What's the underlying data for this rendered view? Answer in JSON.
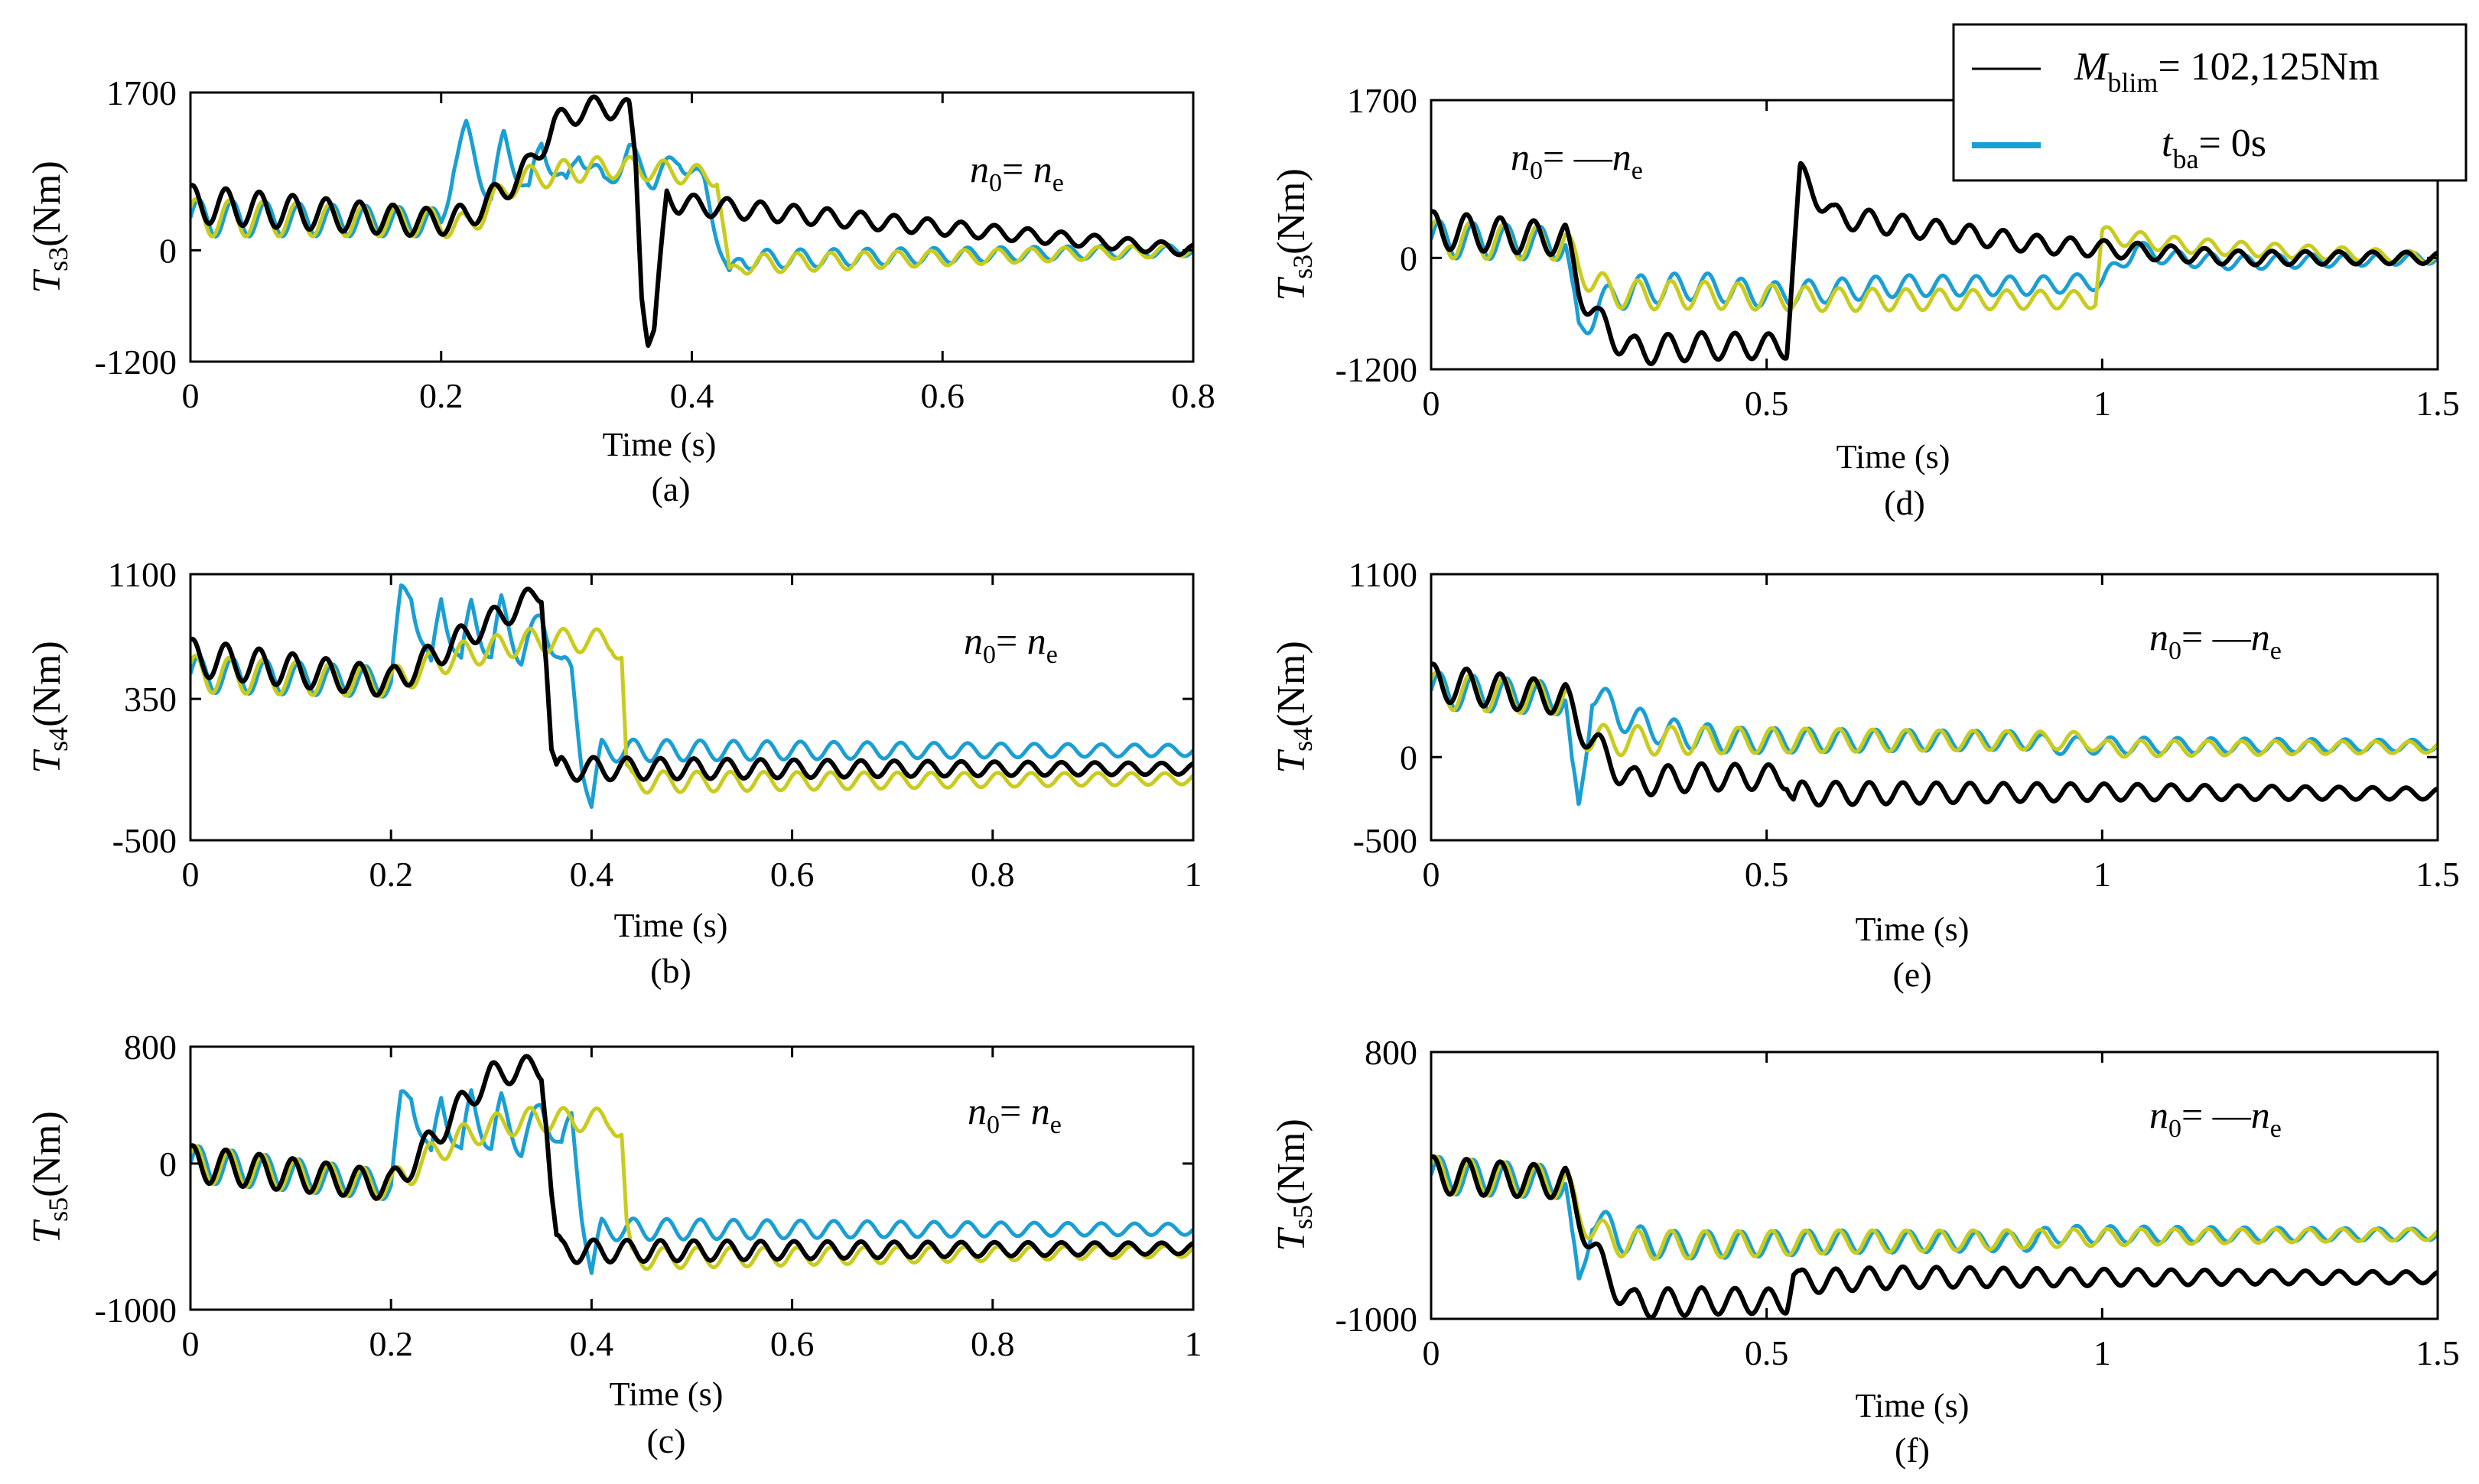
{
  "colors": {
    "black": "#000000",
    "blue": "#1a9fd4",
    "yellow": "#c9cc1e"
  },
  "legend": {
    "entry1": {
      "var": "M",
      "sub": "blim",
      "text": "= 102,125Nm",
      "color": "#000000"
    },
    "entry2": {
      "var": "t",
      "sub": "ba",
      "text": "= 0s",
      "color": "#1a9fd4"
    }
  },
  "chart_data": [
    {
      "type": "line",
      "panel_label": "(a)",
      "xlabel": "Time (s)",
      "ylabel_var": "T",
      "ylabel_sub": "s3",
      "ylabel_unit": "(Nm)",
      "annotation": {
        "lhs": "n",
        "lhs_sub": "0",
        "eq": "= ",
        "neg": "",
        "rhs": "n",
        "rhs_sub": "e"
      },
      "xlim": [
        0,
        0.8
      ],
      "ylim": [
        -1200,
        1700
      ],
      "xticks": [
        0,
        0.2,
        0.4,
        0.6,
        0.8
      ],
      "xtick_labels": [
        "0",
        "0.2",
        "0.4",
        "0.6",
        "0.8"
      ],
      "yticks": [
        -1200,
        0,
        1700
      ],
      "ytick_labels": [
        "-1200",
        "0",
        "1700"
      ],
      "series": [
        {
          "color": "#1a9fd4",
          "x": [
            0,
            0.2,
            0.21,
            0.22,
            0.24,
            0.25,
            0.27,
            0.28,
            0.3,
            0.31,
            0.33,
            0.35,
            0.37,
            0.39,
            0.41,
            0.43,
            0.44,
            0.8
          ],
          "y": [
            350,
            300,
            950,
            1250,
            550,
            1200,
            600,
            1150,
            650,
            1100,
            700,
            1050,
            750,
            1000,
            700,
            -300,
            -100,
            0
          ]
        },
        {
          "color": "#c9cc1e",
          "x": [
            0,
            0.2,
            0.22,
            0.26,
            0.3,
            0.34,
            0.38,
            0.41,
            0.42,
            0.43,
            0.44,
            0.8
          ],
          "y": [
            350,
            300,
            250,
            750,
            850,
            900,
            850,
            800,
            800,
            -300,
            -150,
            0
          ]
        },
        {
          "color": "#000000",
          "x": [
            0,
            0.19,
            0.22,
            0.25,
            0.27,
            0.29,
            0.31,
            0.33,
            0.35,
            0.355,
            0.36,
            0.365,
            0.37,
            0.38,
            0.39,
            0.8
          ],
          "y": [
            500,
            300,
            350,
            650,
            900,
            1350,
            1500,
            1550,
            1500,
            1000,
            -400,
            -950,
            -900,
            600,
            500,
            0
          ]
        }
      ]
    },
    {
      "type": "line",
      "panel_label": "(b)",
      "xlabel": "Time (s)",
      "ylabel_var": "T",
      "ylabel_sub": "s4",
      "ylabel_unit": "(Nm)",
      "annotation": {
        "lhs": "n",
        "lhs_sub": "0",
        "eq": "= ",
        "neg": "",
        "rhs": "n",
        "rhs_sub": "e"
      },
      "xlim": [
        0,
        1
      ],
      "ylim": [
        -500,
        1100
      ],
      "xticks": [
        0,
        0.2,
        0.4,
        0.6,
        0.8,
        1
      ],
      "xtick_labels": [
        "0",
        "0.2",
        "0.4",
        "0.6",
        "0.8",
        "1"
      ],
      "yticks": [
        -500,
        350,
        1100
      ],
      "ytick_labels": [
        "-500",
        "350",
        "1100"
      ],
      "series": [
        {
          "color": "#1a9fd4",
          "x": [
            0,
            0.2,
            0.21,
            0.22,
            0.24,
            0.25,
            0.27,
            0.28,
            0.3,
            0.31,
            0.33,
            0.35,
            0.37,
            0.38,
            0.39,
            0.4,
            0.41,
            1
          ],
          "y": [
            500,
            450,
            950,
            1000,
            500,
            950,
            550,
            900,
            600,
            900,
            600,
            850,
            550,
            500,
            0,
            -300,
            40,
            40
          ]
        },
        {
          "color": "#c9cc1e",
          "x": [
            0,
            0.2,
            0.22,
            0.26,
            0.3,
            0.34,
            0.38,
            0.42,
            0.43,
            0.435,
            0.44,
            1
          ],
          "y": [
            500,
            450,
            500,
            600,
            650,
            700,
            700,
            700,
            600,
            -100,
            -150,
            -130
          ]
        },
        {
          "color": "#000000",
          "x": [
            0,
            0.2,
            0.24,
            0.28,
            0.31,
            0.34,
            0.35,
            0.355,
            0.36,
            0.365,
            0.37,
            1
          ],
          "y": [
            600,
            450,
            600,
            750,
            850,
            950,
            1000,
            600,
            50,
            -100,
            -70,
            -70
          ]
        }
      ]
    },
    {
      "type": "line",
      "panel_label": "(c)",
      "xlabel": "Time (s)",
      "ylabel_var": "T",
      "ylabel_sub": "s5",
      "ylabel_unit": "(Nm)",
      "annotation": {
        "lhs": "n",
        "lhs_sub": "0",
        "eq": "= ",
        "neg": "",
        "rhs": "n",
        "rhs_sub": "e"
      },
      "xlim": [
        0,
        1
      ],
      "ylim": [
        -1000,
        800
      ],
      "xticks": [
        0,
        0.2,
        0.4,
        0.6,
        0.8,
        1
      ],
      "xtick_labels": [
        "0",
        "0.2",
        "0.4",
        "0.6",
        "0.8",
        "1"
      ],
      "yticks": [
        -1000,
        0,
        800
      ],
      "ytick_labels": [
        "-1000",
        "0",
        "800"
      ],
      "series": [
        {
          "color": "#1a9fd4",
          "x": [
            0,
            0.2,
            0.21,
            0.22,
            0.24,
            0.25,
            0.27,
            0.28,
            0.3,
            0.31,
            0.33,
            0.35,
            0.37,
            0.38,
            0.39,
            0.4,
            0.41,
            1
          ],
          "y": [
            0,
            -150,
            400,
            500,
            0,
            450,
            50,
            450,
            100,
            400,
            100,
            400,
            100,
            300,
            -300,
            -750,
            -450,
            -450
          ]
        },
        {
          "color": "#c9cc1e",
          "x": [
            0,
            0.2,
            0.22,
            0.26,
            0.3,
            0.34,
            0.38,
            0.42,
            0.43,
            0.435,
            0.44,
            1
          ],
          "y": [
            0,
            -150,
            -50,
            150,
            250,
            300,
            300,
            300,
            200,
            -450,
            -650,
            -600
          ]
        },
        {
          "color": "#000000",
          "x": [
            0,
            0.2,
            0.24,
            0.27,
            0.3,
            0.33,
            0.35,
            0.355,
            0.36,
            0.365,
            0.37,
            1
          ],
          "y": [
            0,
            -150,
            150,
            400,
            600,
            650,
            650,
            300,
            -200,
            -550,
            -600,
            -580
          ]
        }
      ]
    },
    {
      "type": "line",
      "panel_label": "(d)",
      "xlabel": "Time (s)",
      "ylabel_var": "T",
      "ylabel_sub": "s3",
      "ylabel_unit": "(Nm)",
      "annotation": {
        "lhs": "n",
        "lhs_sub": "0",
        "eq": "= ",
        "neg": "—",
        "rhs": "n",
        "rhs_sub": "e"
      },
      "xlim": [
        0,
        1.5
      ],
      "ylim": [
        -1200,
        1700
      ],
      "xticks": [
        0,
        0.5,
        1,
        1.5
      ],
      "xtick_labels": [
        "0",
        "0.5",
        "1",
        "1.5"
      ],
      "yticks": [
        -1200,
        0,
        1700
      ],
      "ytick_labels": [
        "-1200",
        "0",
        "1700"
      ],
      "series": [
        {
          "color": "#1a9fd4",
          "x": [
            0,
            0.2,
            0.21,
            0.22,
            0.25,
            0.3,
            0.4,
            0.5,
            0.7,
            0.9,
            1.0,
            1.05,
            1.1,
            1.2,
            1.5
          ],
          "y": [
            200,
            150,
            -400,
            -800,
            -500,
            -350,
            -300,
            -400,
            -300,
            -300,
            -250,
            100,
            0,
            -50,
            0
          ]
        },
        {
          "color": "#c9cc1e",
          "x": [
            0,
            0.2,
            0.22,
            0.26,
            0.3,
            0.4,
            0.6,
            0.8,
            0.99,
            1.0,
            1.05,
            1.1,
            1.2,
            1.5
          ],
          "y": [
            200,
            150,
            -100,
            -350,
            -400,
            -400,
            -450,
            -450,
            -450,
            250,
            200,
            150,
            100,
            0
          ]
        },
        {
          "color": "#000000",
          "x": [
            0,
            0.2,
            0.22,
            0.25,
            0.3,
            0.4,
            0.5,
            0.53,
            0.54,
            0.55,
            0.6,
            0.7,
            0.8,
            0.9,
            1.0,
            1.2,
            1.5
          ],
          "y": [
            300,
            200,
            -300,
            -700,
            -1000,
            -950,
            -950,
            -950,
            0,
            900,
            450,
            350,
            250,
            150,
            100,
            0,
            0
          ]
        }
      ]
    },
    {
      "type": "line",
      "panel_label": "(e)",
      "xlabel": "Time (s)",
      "ylabel_var": "T",
      "ylabel_sub": "s4",
      "ylabel_unit": "(Nm)",
      "annotation": {
        "lhs": "n",
        "lhs_sub": "0",
        "eq": "= ",
        "neg": "—",
        "rhs": "n",
        "rhs_sub": "e"
      },
      "xlim": [
        0,
        1.5
      ],
      "ylim": [
        -500,
        1100
      ],
      "xticks": [
        0,
        0.5,
        1,
        1.5
      ],
      "xtick_labels": [
        "0",
        "0.5",
        "1",
        "1.5"
      ],
      "yticks": [
        -500,
        0,
        1100
      ],
      "ytick_labels": [
        "-500",
        "0",
        "1100"
      ],
      "series": [
        {
          "color": "#1a9fd4",
          "x": [
            0,
            0.2,
            0.21,
            0.22,
            0.24,
            0.28,
            0.35,
            0.45,
            0.6,
            0.9,
            0.92,
            1.0,
            1.5
          ],
          "y": [
            400,
            350,
            -100,
            -350,
            400,
            250,
            150,
            100,
            100,
            100,
            70,
            70,
            70
          ]
        },
        {
          "color": "#c9cc1e",
          "x": [
            0,
            0.2,
            0.22,
            0.26,
            0.3,
            0.4,
            0.6,
            0.8,
            0.98,
            1.0,
            1.5
          ],
          "y": [
            400,
            350,
            150,
            100,
            100,
            100,
            100,
            100,
            100,
            50,
            60
          ]
        },
        {
          "color": "#000000",
          "x": [
            0,
            0.2,
            0.22,
            0.26,
            0.3,
            0.4,
            0.5,
            0.53,
            0.54,
            0.55,
            1.0,
            1.5
          ],
          "y": [
            450,
            350,
            200,
            0,
            -150,
            -120,
            -120,
            -120,
            -250,
            -220,
            -210,
            -220
          ]
        }
      ]
    },
    {
      "type": "line",
      "panel_label": "(f)",
      "xlabel": "Time (s)",
      "ylabel_var": "T",
      "ylabel_sub": "s5",
      "ylabel_unit": "(Nm)",
      "annotation": {
        "lhs": "n",
        "lhs_sub": "0",
        "eq": "= ",
        "neg": "—",
        "rhs": "n",
        "rhs_sub": "e"
      },
      "xlim": [
        0,
        1.5
      ],
      "ylim": [
        -1000,
        800
      ],
      "xticks": [
        0,
        0.5,
        1,
        1.5
      ],
      "xtick_labels": [
        "0",
        "0.5",
        "1",
        "1.5"
      ],
      "yticks": [
        -1000,
        800
      ],
      "ytick_labels": [
        "-1000",
        "800"
      ],
      "series": [
        {
          "color": "#1a9fd4",
          "x": [
            0,
            0.2,
            0.21,
            0.22,
            0.24,
            0.28,
            0.35,
            0.45,
            0.6,
            0.9,
            0.92,
            1.0,
            1.5
          ],
          "y": [
            -30,
            -80,
            -500,
            -800,
            -300,
            -450,
            -500,
            -500,
            -480,
            -480,
            -430,
            -430,
            -430
          ]
        },
        {
          "color": "#c9cc1e",
          "x": [
            0,
            0.2,
            0.22,
            0.26,
            0.3,
            0.4,
            0.6,
            0.8,
            1.0,
            1.5
          ],
          "y": [
            -30,
            -80,
            -300,
            -450,
            -500,
            -500,
            -480,
            -470,
            -450,
            -430
          ]
        },
        {
          "color": "#000000",
          "x": [
            0,
            0.2,
            0.22,
            0.26,
            0.3,
            0.4,
            0.5,
            0.53,
            0.54,
            0.55,
            0.7,
            1.0,
            1.5
          ],
          "y": [
            -30,
            -80,
            -300,
            -700,
            -900,
            -880,
            -880,
            -880,
            -700,
            -750,
            -720,
            -720,
            -720
          ]
        }
      ]
    }
  ]
}
